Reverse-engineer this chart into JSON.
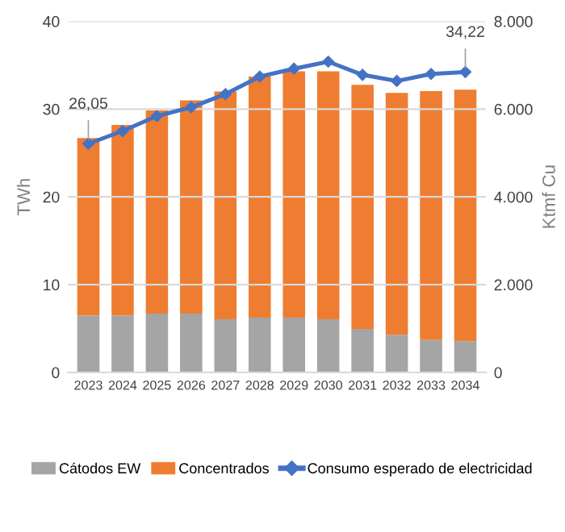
{
  "chart_data": {
    "type": "bar",
    "stacked": true,
    "categories": [
      "2023",
      "2024",
      "2025",
      "2026",
      "2027",
      "2028",
      "2029",
      "2030",
      "2031",
      "2032",
      "2033",
      "2034"
    ],
    "series": [
      {
        "name": "Cátodos EW",
        "color": "#a5a5a5",
        "axis": "y2",
        "values": [
          1300,
          1300,
          1340,
          1340,
          1210,
          1250,
          1250,
          1210,
          990,
          860,
          740,
          710
        ]
      },
      {
        "name": "Concentrados",
        "color": "#ee7d31",
        "axis": "y2",
        "values": [
          4040,
          4340,
          4630,
          4860,
          5190,
          5490,
          5610,
          5650,
          5560,
          5510,
          5670,
          5730
        ]
      },
      {
        "name": "Consumo esperado de electricidad",
        "type": "line",
        "color": "#4472c4",
        "marker": "diamond",
        "values": [
          26.05,
          27.5,
          29.2,
          30.2,
          31.7,
          33.7,
          34.6,
          35.4,
          33.9,
          33.2,
          34.0,
          34.22
        ]
      }
    ],
    "ylabel": "TWh",
    "y2label": "Ktmf Cu",
    "ylim": [
      0,
      40
    ],
    "yticks": [
      0,
      10,
      20,
      30,
      40
    ],
    "y2lim": [
      0,
      8000
    ],
    "y2ticks": [
      {
        "value": 0,
        "label": "0"
      },
      {
        "value": 2000,
        "label": "2.000"
      },
      {
        "value": 4000,
        "label": "4.000"
      },
      {
        "value": 6000,
        "label": "6.000"
      },
      {
        "value": 8000,
        "label": "8.000"
      }
    ],
    "annotations": [
      {
        "text": "26,05",
        "x": "2023",
        "y": 26.05
      },
      {
        "text": "34,22",
        "x": "2034",
        "y": 34.22
      }
    ],
    "grid": "y",
    "legend": "bottom"
  }
}
